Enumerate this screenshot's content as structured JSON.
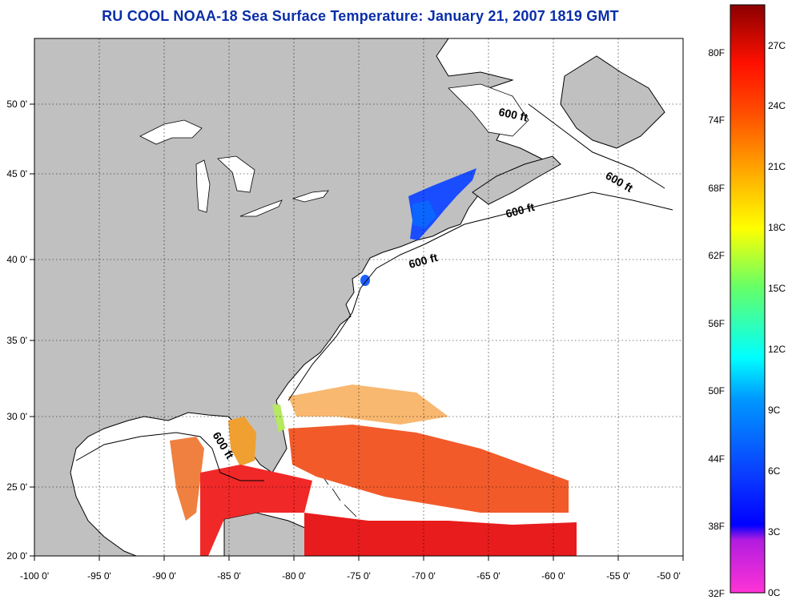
{
  "title": "RU COOL  NOAA-18  Sea Surface Temperature:  January 21, 2007 1819 GMT",
  "map": {
    "lon_labels": [
      "-100 0'",
      "-95 0'",
      "-90 0'",
      "-85 0'",
      "-80 0'",
      "-75 0'",
      "-70 0'",
      "-65 0'",
      "-60 0'",
      "-55 0'",
      "-50 0'"
    ],
    "lat_labels": [
      "20 0'",
      "25 0'",
      "30 0'",
      "35 0'",
      "40 0'",
      "45 0'",
      "50 0'"
    ],
    "isobath_labels": [
      "600 ft",
      "600 ft",
      "600 ft",
      "600 ft",
      "600 ft"
    ],
    "land_color": "#c0c0c0",
    "gridlines": "dotted"
  },
  "colorbar": {
    "fahrenheit_labels": [
      "80F",
      "74F",
      "68F",
      "62F",
      "56F",
      "50F",
      "44F",
      "38F",
      "32F"
    ],
    "celsius_labels": [
      "27C",
      "24C",
      "21C",
      "18C",
      "15C",
      "12C",
      "9C",
      "6C",
      "3C",
      "0C"
    ],
    "scale_colors": [
      "#ff33d6",
      "#7a1cd6",
      "#0000ff",
      "#0099ff",
      "#00ffff",
      "#66ff66",
      "#ffff00",
      "#ff9900",
      "#ff2a00",
      "#8b0000"
    ]
  }
}
